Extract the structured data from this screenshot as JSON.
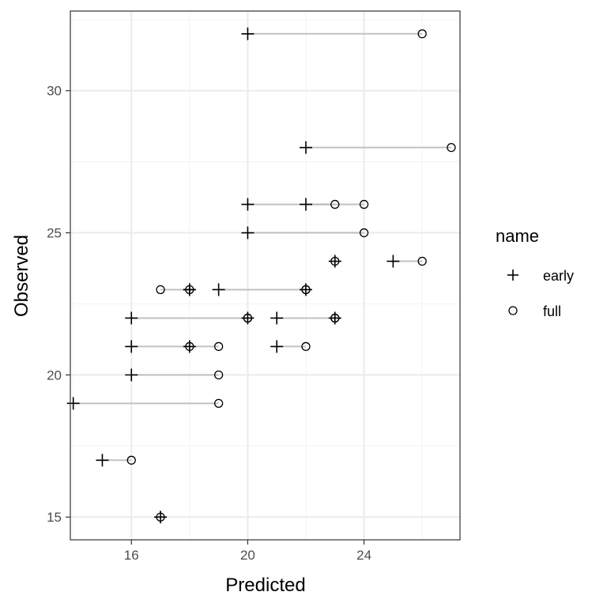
{
  "chart_data": {
    "type": "scatter",
    "xlabel": "Predicted",
    "ylabel": "Observed",
    "xlim": [
      13.9,
      27.3
    ],
    "ylim": [
      14.2,
      32.8
    ],
    "x_ticks": [
      16,
      20,
      24
    ],
    "y_ticks": [
      15,
      20,
      25,
      30
    ],
    "grid": true,
    "legend": {
      "title": "name",
      "placement": "right",
      "entries": [
        {
          "label": "early",
          "shape": "plus"
        },
        {
          "label": "full",
          "shape": "circle"
        }
      ]
    },
    "colors": {
      "points": "#000000",
      "segments": "#b3b3b3",
      "grid_major": "#ebebeb",
      "grid_minor": "#f5f5f5",
      "panel_border": "#333333"
    },
    "pairs": [
      {
        "observed": 32,
        "early": 20,
        "full": 26
      },
      {
        "observed": 28,
        "early": 22,
        "full": 27
      },
      {
        "observed": 26,
        "early": 20,
        "full": 23
      },
      {
        "observed": 26,
        "early": 22,
        "full": 24
      },
      {
        "observed": 25,
        "early": 20,
        "full": 24
      },
      {
        "observed": 24,
        "early": 23,
        "full": 23
      },
      {
        "observed": 24,
        "early": 25,
        "full": 26
      },
      {
        "observed": 23,
        "early": 18,
        "full": 17
      },
      {
        "observed": 23,
        "early": 18,
        "full": 18
      },
      {
        "observed": 23,
        "early": 19,
        "full": 22
      },
      {
        "observed": 23,
        "early": 22,
        "full": 22
      },
      {
        "observed": 22,
        "early": 16,
        "full": 20
      },
      {
        "observed": 22,
        "early": 20,
        "full": 20
      },
      {
        "observed": 22,
        "early": 21,
        "full": 23
      },
      {
        "observed": 22,
        "early": 23,
        "full": 23
      },
      {
        "observed": 21,
        "early": 16,
        "full": 18
      },
      {
        "observed": 21,
        "early": 18,
        "full": 19
      },
      {
        "observed": 21,
        "early": 21,
        "full": 22
      },
      {
        "observed": 20,
        "early": 16,
        "full": 19
      },
      {
        "observed": 19,
        "early": 14,
        "full": 19
      },
      {
        "observed": 17,
        "early": 15,
        "full": 16
      },
      {
        "observed": 15,
        "early": 17,
        "full": 17
      }
    ]
  }
}
